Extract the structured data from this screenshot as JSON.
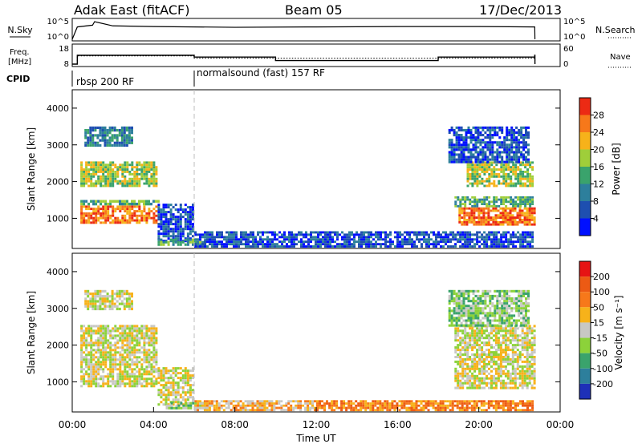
{
  "header": {
    "station": "Adak East (fitACF)",
    "beam": "Beam 05",
    "date": "17/Dec/2013"
  },
  "chart_data": [
    {
      "type": "line",
      "panel": "noise",
      "left_label": "N.Sky",
      "right_label": "N.Search",
      "left_ticks": [
        "10^5",
        "10^0"
      ],
      "right_ticks": [
        "10^5",
        "10^0"
      ],
      "x": [
        0,
        0.25,
        1,
        1.1,
        2,
        4,
        6,
        8,
        12,
        16,
        20,
        22.75,
        22.76
      ],
      "values": [
        0.0,
        3.5,
        4.0,
        5.0,
        3.8,
        3.6,
        3.5,
        3.4,
        3.5,
        3.6,
        3.6,
        3.5,
        0.0
      ]
    },
    {
      "type": "line",
      "panel": "frequency",
      "left_label": "Freq. [MHz]",
      "right_label": "Nave",
      "left_ticks": [
        "18",
        "8"
      ],
      "right_ticks": [
        "60",
        "0"
      ],
      "series": [
        {
          "x": [
            0,
            0.25,
            6,
            10,
            18,
            22.75,
            22.76
          ],
          "values": [
            8,
            13,
            12,
            10,
            12,
            13,
            8
          ]
        },
        {
          "x": [
            0,
            0.25,
            6,
            22.75,
            22.76
          ],
          "values": [
            0,
            28,
            20,
            20,
            0
          ]
        }
      ]
    },
    {
      "type": "table",
      "panel": "cpid",
      "label": "CPID",
      "segments": [
        {
          "label": "rbsp 200 RF",
          "start": 0.0,
          "end": 6.0
        },
        {
          "label": "normalsound (fast) 157 RF",
          "start": 6.0,
          "end": 24.0
        }
      ]
    },
    {
      "type": "heatmap",
      "panel": "power",
      "ylabel": "Slant Range [km]",
      "yticks": [
        1000,
        2000,
        3000,
        4000
      ],
      "ylim": [
        180,
        4500
      ],
      "xlim": [
        0,
        24
      ],
      "colorbar": {
        "label": "Power [dB]",
        "ticks": [
          "4",
          "8",
          "12",
          "16",
          "20",
          "24",
          "28"
        ],
        "colors": [
          "#0010ff",
          "#1e4fb0",
          "#2d7f9c",
          "#3aa36c",
          "#9fce3a",
          "#f7b21a",
          "#f7781a",
          "#ec2a14"
        ]
      },
      "regions": [
        {
          "t0": 0.4,
          "t1": 4.2,
          "r0": 850,
          "r1": 1350,
          "level": 6
        },
        {
          "t0": 0.4,
          "t1": 4.3,
          "r0": 1350,
          "r1": 1500,
          "level": 3
        },
        {
          "t0": 0.4,
          "t1": 4.2,
          "r0": 1850,
          "r1": 2550,
          "level": 4
        },
        {
          "t0": 0.6,
          "t1": 3.0,
          "r0": 2950,
          "r1": 3500,
          "level": 2
        },
        {
          "t0": 4.2,
          "t1": 6.0,
          "r0": 350,
          "r1": 1400,
          "level": 1
        },
        {
          "t0": 4.2,
          "t1": 6.6,
          "r0": 250,
          "r1": 450,
          "level": 3
        },
        {
          "t0": 6.0,
          "t1": 22.7,
          "r0": 200,
          "r1": 650,
          "level": 1
        },
        {
          "t0": 19.0,
          "t1": 22.8,
          "r0": 800,
          "r1": 1300,
          "level": 6
        },
        {
          "t0": 18.8,
          "t1": 22.7,
          "r0": 1300,
          "r1": 1600,
          "level": 3
        },
        {
          "t0": 19.4,
          "t1": 22.7,
          "r0": 1850,
          "r1": 2550,
          "level": 4
        },
        {
          "t0": 18.5,
          "t1": 22.5,
          "r0": 2500,
          "r1": 3500,
          "level": 1
        }
      ]
    },
    {
      "type": "heatmap",
      "panel": "velocity",
      "ylabel": "Slant Range [km]",
      "xlabel": "Time UT",
      "xticks": [
        "00:00",
        "04:00",
        "08:00",
        "12:00",
        "16:00",
        "20:00",
        "00:00"
      ],
      "yticks": [
        1000,
        2000,
        3000,
        4000
      ],
      "ylim": [
        180,
        4500
      ],
      "xlim": [
        0,
        24
      ],
      "colorbar": {
        "label": "Velocity [m s⁻¹]",
        "ticks": [
          "200",
          "100",
          "50",
          "15",
          "-15",
          "-50",
          "-100",
          "-200"
        ],
        "colors": [
          "#1e30b8",
          "#2d7f9c",
          "#3aa36c",
          "#8cd23a",
          "#c8c8c4",
          "#f7b21a",
          "#f7781a",
          "#ec5a14",
          "#e61414"
        ]
      },
      "regions": [
        {
          "t0": 0.4,
          "t1": 4.2,
          "r0": 850,
          "r1": 2550,
          "level": 4
        },
        {
          "t0": 0.6,
          "t1": 3.0,
          "r0": 2950,
          "r1": 3500,
          "level": 4
        },
        {
          "t0": 4.2,
          "t1": 6.0,
          "r0": 350,
          "r1": 1400,
          "level": 4
        },
        {
          "t0": 4.6,
          "t1": 6.6,
          "r0": 250,
          "r1": 450,
          "level": 3
        },
        {
          "t0": 6.0,
          "t1": 12.0,
          "r0": 200,
          "r1": 500,
          "level": 5
        },
        {
          "t0": 12.0,
          "t1": 22.7,
          "r0": 200,
          "r1": 500,
          "level": 6
        },
        {
          "t0": 18.8,
          "t1": 22.8,
          "r0": 800,
          "r1": 2550,
          "level": 4
        },
        {
          "t0": 18.5,
          "t1": 22.5,
          "r0": 2500,
          "r1": 3500,
          "level": 3
        }
      ]
    }
  ]
}
